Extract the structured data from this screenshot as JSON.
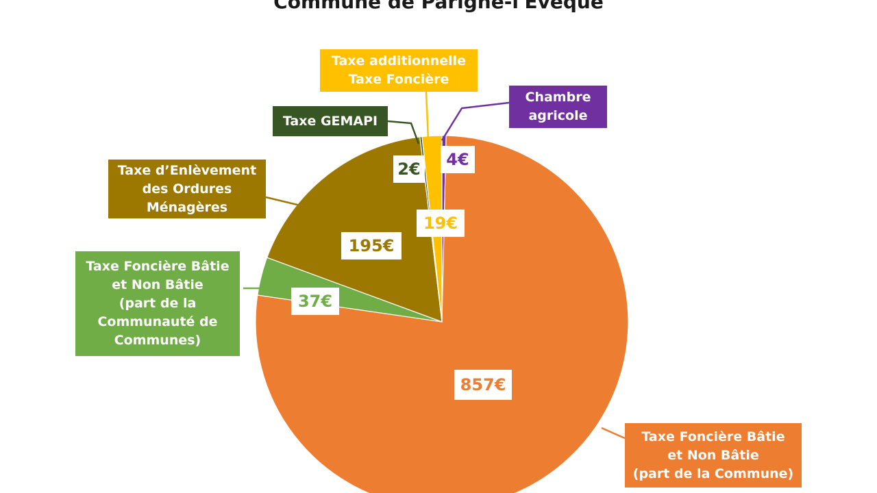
{
  "chart_data": {
    "type": "pie",
    "title": "Commune de Parigné-l'Évêque",
    "slices": [
      {
        "label_lines": [
          "Taxe Foncière Bâtie",
          "et Non Bâtie",
          "(part de la Commune)"
        ],
        "value": 857,
        "value_label": "857€",
        "color": "#ED7D31"
      },
      {
        "label_lines": [
          "Taxe Foncière Bâtie",
          "et Non Bâtie",
          "(part de la",
          "Communauté de",
          "Communes)"
        ],
        "value": 37,
        "value_label": "37€",
        "color": "#70AD47"
      },
      {
        "label_lines": [
          "Taxe d’Enlèvement",
          "des Ordures",
          "Ménagères"
        ],
        "value": 195,
        "value_label": "195€",
        "color": "#9C7800"
      },
      {
        "label_lines": [
          "Taxe GEMAPI"
        ],
        "value": 2,
        "value_label": "2€",
        "color": "#375623"
      },
      {
        "label_lines": [
          "Taxe additionnelle",
          "Taxe Foncière"
        ],
        "value": 19,
        "value_label": "19€",
        "color": "#FFC000"
      },
      {
        "label_lines": [
          "Chambre",
          "agricole"
        ],
        "value": 4,
        "value_label": "4€",
        "color": "#7030A0"
      }
    ],
    "legend": "none"
  }
}
